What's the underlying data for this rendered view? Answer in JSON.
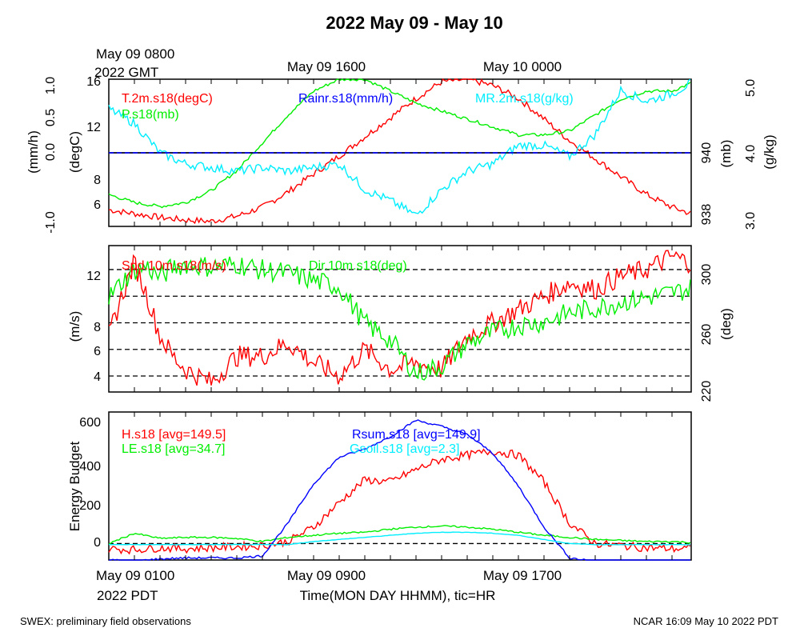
{
  "title": "2022 May 09 - May 10",
  "top_time_labels": [
    {
      "text": "May 09 0800",
      "sub": "2022 GMT"
    },
    {
      "text": "May 09 1600"
    },
    {
      "text": "May 10 0000"
    }
  ],
  "bottom_time_labels": [
    {
      "text": "May 09 0100",
      "sub": "2022 PDT"
    },
    {
      "text": "May 09 0900"
    },
    {
      "text": "May 09 1700"
    }
  ],
  "xlabel": "Time(MON DAY HHMM), tic=HR",
  "footer_left": "SWEX: preliminary field observations",
  "footer_right": "NCAR 16:09 May 10 2022 PDT",
  "colors": {
    "red": "#ff0000",
    "green": "#00ee00",
    "blue": "#0000ff",
    "cyan": "#00eeff",
    "black": "#000000"
  },
  "chart_data": [
    {
      "type": "line",
      "panel": "top",
      "x_range_hours": [
        0,
        22.75
      ],
      "axes": {
        "rain": {
          "label": "(mm/h)",
          "ticks": [
            "1.0",
            "0.5",
            "0.0",
            "-1.0"
          ],
          "range": [
            -1.0,
            1.0
          ]
        },
        "temp": {
          "label": "(degC)",
          "ticks": [
            "16",
            "12",
            "8",
            "6"
          ],
          "range": [
            4.5,
            16
          ]
        },
        "pres": {
          "label": "(mb)",
          "ticks": [
            "940",
            "938"
          ],
          "range": [
            937.6,
            941.3
          ]
        },
        "mr": {
          "label": "(g/kg)",
          "ticks": [
            "5.0",
            "4.0",
            "3.0"
          ],
          "range": [
            3.0,
            5.0
          ]
        }
      },
      "series": [
        {
          "name": "T.2m.s18(degC)",
          "color": "#ff0000",
          "axis": "temp",
          "x": [
            0,
            1,
            2,
            3,
            4,
            5,
            6,
            7,
            8,
            9,
            10,
            11,
            12,
            13,
            14,
            15,
            16,
            17,
            18,
            19,
            20,
            21,
            22,
            22.75
          ],
          "values": [
            5.8,
            5.5,
            5.2,
            5.0,
            4.9,
            5.3,
            6.0,
            7.2,
            8.6,
            10.0,
            11.5,
            13.0,
            14.5,
            15.8,
            16.0,
            15.5,
            14.5,
            12.9,
            11.2,
            9.8,
            8.4,
            7.0,
            6.0,
            5.5
          ]
        },
        {
          "name": "P.s18(mb)",
          "color": "#00ee00",
          "axis": "pres",
          "x": [
            0,
            1,
            2,
            3,
            4,
            5,
            6,
            7,
            8,
            9,
            10,
            11,
            12,
            13,
            14,
            15,
            16,
            17,
            18,
            19,
            20,
            21,
            22,
            22.75
          ],
          "values": [
            938.4,
            938.2,
            938.1,
            938.2,
            938.5,
            939.0,
            939.7,
            940.4,
            941.0,
            941.3,
            941.3,
            941.0,
            940.7,
            940.5,
            940.3,
            940.1,
            939.9,
            939.9,
            940.0,
            940.4,
            940.8,
            941.0,
            941.0,
            941.2
          ]
        },
        {
          "name": "Rainr.s18(mm/h)",
          "color": "#0000ff",
          "axis": "rain",
          "x": [
            0,
            22.75
          ],
          "values": [
            0.0,
            0.0
          ]
        },
        {
          "name": "MR.2m.s18(g/kg)",
          "color": "#00eeff",
          "axis": "mr",
          "x": [
            0,
            1,
            2,
            3,
            4,
            5,
            6,
            7,
            8,
            9,
            10,
            11,
            12,
            13,
            14,
            15,
            16,
            17,
            18,
            19,
            20,
            21,
            22,
            22.75
          ],
          "values": [
            4.6,
            4.4,
            4.0,
            3.85,
            3.8,
            3.75,
            3.8,
            3.75,
            3.8,
            3.85,
            3.5,
            3.35,
            3.15,
            3.5,
            3.75,
            3.85,
            4.1,
            4.1,
            3.95,
            4.25,
            4.85,
            4.7,
            4.8,
            4.95
          ]
        }
      ]
    },
    {
      "type": "line",
      "panel": "middle",
      "x_range_hours": [
        0,
        22.75
      ],
      "axes": {
        "spd": {
          "label": "(m/s)",
          "ticks": [
            "12",
            "8",
            "6",
            "4"
          ],
          "range": [
            2.8,
            13.8
          ]
        },
        "dir": {
          "label": "(deg)",
          "ticks": [
            "300",
            "260",
            "220"
          ],
          "range": [
            218,
            314
          ]
        }
      },
      "series": [
        {
          "name": "Spd.10m.s18(m/s)",
          "color": "#ff0000",
          "axis": "spd",
          "x": [
            0,
            0.5,
            1,
            1.5,
            2,
            2.5,
            3,
            4,
            5,
            6,
            7,
            8,
            9,
            10,
            11,
            12,
            13,
            14,
            15,
            16,
            17,
            18,
            19,
            20,
            21,
            22,
            22.75
          ],
          "values": [
            7,
            10,
            12.5,
            10,
            7,
            5.5,
            4.5,
            3.5,
            5.5,
            5.5,
            6.5,
            5,
            4,
            6,
            4.5,
            5,
            4.5,
            7,
            8,
            9,
            10,
            11,
            10.5,
            11.5,
            12,
            13,
            12.5
          ]
        },
        {
          "name": "Dir.10m.s18(deg)",
          "color": "#00ee00",
          "axis": "dir",
          "x": [
            0,
            0.5,
            1,
            1.5,
            2,
            2.5,
            3,
            4,
            5,
            6,
            7,
            8,
            9,
            10,
            11,
            12,
            13,
            14,
            15,
            16,
            17,
            18,
            19,
            20,
            21,
            22,
            22.75
          ],
          "values": [
            280,
            290,
            298,
            300,
            293,
            300,
            302,
            300,
            302,
            298,
            296,
            291,
            287,
            263,
            252,
            230,
            235,
            250,
            257,
            262,
            264,
            270,
            273,
            277,
            280,
            283,
            286
          ]
        }
      ],
      "ref_lines": [
        12,
        10,
        8,
        6,
        4
      ]
    },
    {
      "type": "line",
      "panel": "bottom",
      "ylabel": "Energy Budget",
      "x_range_hours": [
        0,
        22.75
      ],
      "y_ticks": [
        "600",
        "400",
        "200",
        "0"
      ],
      "ylim": [
        -80,
        640
      ],
      "series": [
        {
          "name": "H.s18 [avg=149.5]",
          "color": "#ff0000",
          "x": [
            0,
            1,
            2,
            3,
            4,
            5,
            6,
            7,
            8,
            9,
            10,
            11,
            12,
            13,
            14,
            15,
            16,
            17,
            18,
            19,
            20,
            21,
            22,
            22.75
          ],
          "values": [
            -25,
            -30,
            -20,
            -25,
            -20,
            -15,
            -10,
            10,
            80,
            200,
            310,
            300,
            360,
            410,
            430,
            450,
            430,
            300,
            100,
            0,
            -10,
            -20,
            -25,
            -25
          ]
        },
        {
          "name": "LE.s18 [avg=34.7]",
          "color": "#00ee00",
          "x": [
            0,
            1,
            2,
            3,
            4,
            5,
            6,
            7,
            8,
            9,
            10,
            11,
            12,
            13,
            14,
            15,
            16,
            17,
            18,
            19,
            20,
            21,
            22,
            22.75
          ],
          "values": [
            0,
            50,
            25,
            30,
            30,
            25,
            10,
            30,
            40,
            50,
            55,
            70,
            80,
            85,
            80,
            70,
            55,
            40,
            30,
            20,
            15,
            10,
            10,
            5
          ]
        },
        {
          "name": "Rsum.s18 [avg=149.9]",
          "color": "#0000ff",
          "x": [
            0,
            1,
            2,
            3,
            4,
            5,
            6,
            7,
            8,
            9,
            10,
            11,
            12,
            13,
            14,
            15,
            16,
            17,
            18,
            19,
            20,
            21,
            22,
            22.75
          ],
          "values": [
            -80,
            -85,
            -75,
            -70,
            -70,
            -70,
            -60,
            100,
            290,
            420,
            460,
            520,
            600,
            570,
            530,
            440,
            280,
            80,
            -70,
            -85,
            -85,
            -85,
            -85,
            -85
          ]
        },
        {
          "name": "Gsoil.s18 [avg=2.3]",
          "color": "#00eeff",
          "x": [
            0,
            1,
            2,
            3,
            4,
            5,
            6,
            7,
            8,
            9,
            10,
            11,
            12,
            13,
            14,
            15,
            16,
            17,
            18,
            19,
            20,
            21,
            22,
            22.75
          ],
          "values": [
            -5,
            -5,
            -5,
            -5,
            -5,
            -5,
            -5,
            -5,
            10,
            20,
            30,
            40,
            50,
            55,
            55,
            50,
            40,
            20,
            0,
            -5,
            -5,
            -5,
            -5,
            -5
          ]
        }
      ],
      "ref_lines": [
        0
      ]
    }
  ]
}
